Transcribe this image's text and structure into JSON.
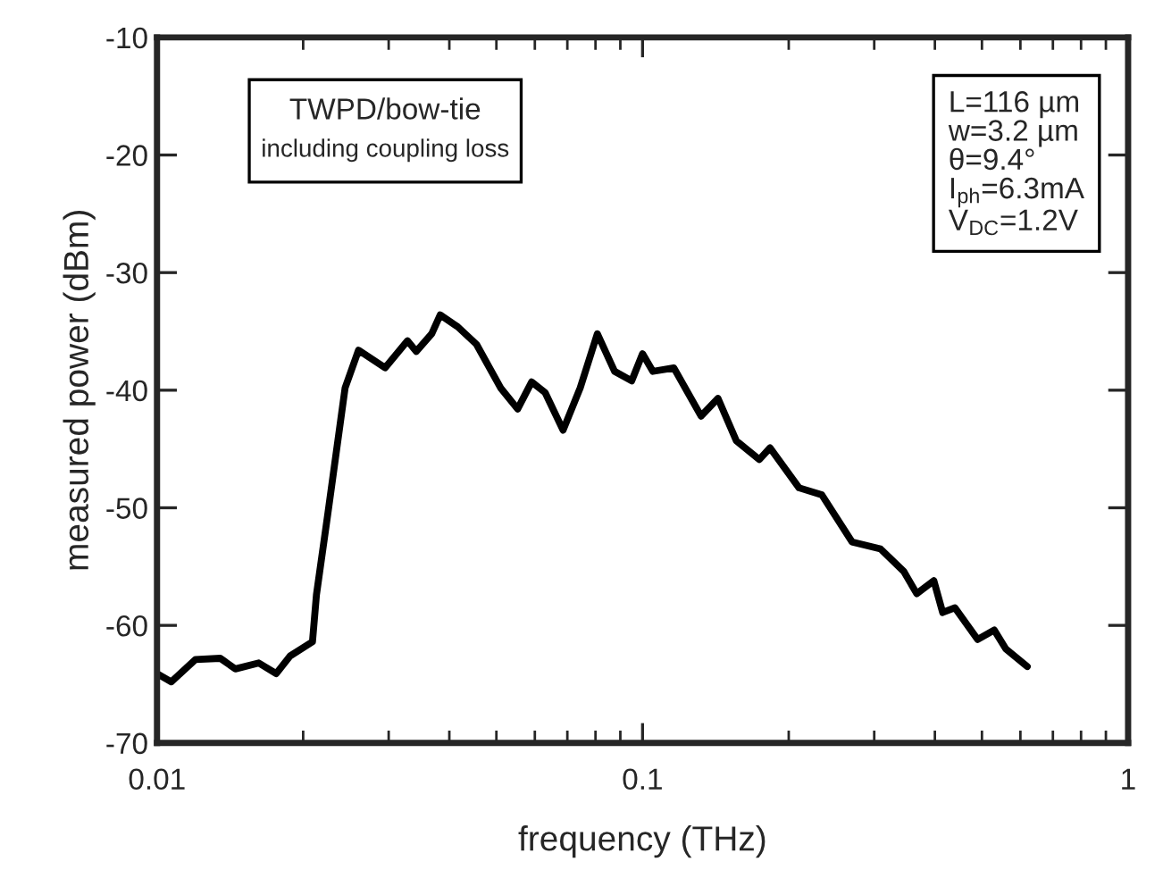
{
  "chart_data": {
    "type": "line",
    "xlabel": "frequency (THz)",
    "ylabel": "measured power (dBm)",
    "annotations": [
      "TWPD/bow-tie",
      "including coupling loss",
      "L=116 µm\nw=3.2 µm\nθ=9.4°\nI$_{ph}$=6.3mA\nV$_{DC}$=1.2V"
    ],
    "log": "x",
    "grid": false,
    "marker": "none",
    "line_style": "solid",
    "xlim": [
      0.01,
      1
    ],
    "xticks": [
      0.01,
      0.1,
      1
    ],
    "ylim": [
      -70,
      -10
    ],
    "yticks": [
      -70,
      -60,
      -50,
      -40,
      -30,
      -20,
      -10
    ],
    "series": [
      {
        "color": "#000000",
        "x": [
          0.01,
          0.0107,
          0.012,
          0.0135,
          0.0145,
          0.0162,
          0.0176,
          0.0188,
          0.0209,
          0.0213,
          0.0225,
          0.0244,
          0.026,
          0.0295,
          0.0328,
          0.0342,
          0.0368,
          0.0383,
          0.0416,
          0.0455,
          0.051,
          0.0553,
          0.0591,
          0.063,
          0.0686,
          0.0744,
          0.0807,
          0.0876,
          0.095,
          0.1,
          0.105,
          0.116,
          0.132,
          0.143,
          0.156,
          0.174,
          0.183,
          0.21,
          0.234,
          0.27,
          0.309,
          0.345,
          0.367,
          0.398,
          0.415,
          0.44,
          0.49,
          0.53,
          0.56,
          0.62
        ],
        "values": [
          -64.1,
          -64.8,
          -62.9,
          -62.8,
          -63.7,
          -63.2,
          -64.1,
          -62.6,
          -61.4,
          -57.4,
          -50.4,
          -39.8,
          -36.6,
          -38.1,
          -35.8,
          -36.7,
          -35.2,
          -33.6,
          -34.6,
          -36.1,
          -39.8,
          -41.6,
          -39.3,
          -40.2,
          -43.4,
          -39.8,
          -35.2,
          -38.4,
          -39.2,
          -36.9,
          -38.4,
          -38.1,
          -42.2,
          -40.7,
          -44.3,
          -45.9,
          -44.9,
          -48.3,
          -48.9,
          -52.9,
          -53.5,
          -55.4,
          -57.3,
          -56.2,
          -58.9,
          -58.5,
          -61.2,
          -60.4,
          -62.0,
          -63.5
        ]
      }
    ]
  }
}
